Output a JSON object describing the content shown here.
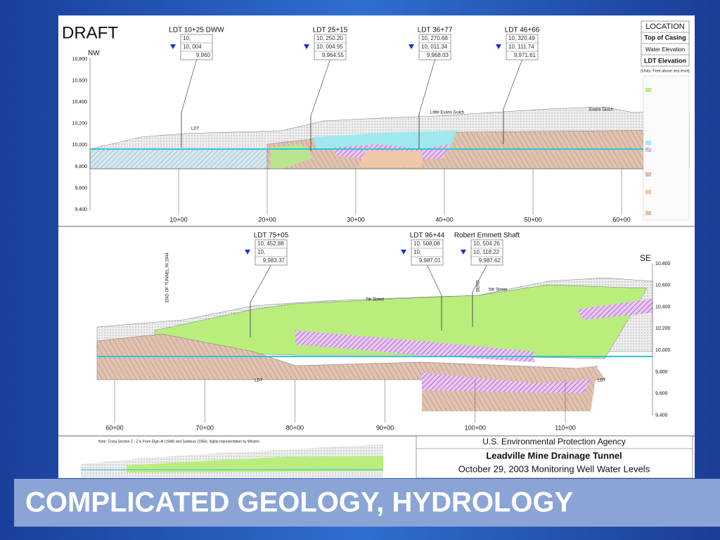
{
  "slide": {
    "title": "COMPLICATED GEOLOGY, HYDROLOGY"
  },
  "upper_section": {
    "label": "DRAFT",
    "start_direction": "NW",
    "elevations": [
      "10,800",
      "10,600",
      "10,400",
      "10,200",
      "10,000",
      "9,800",
      "9,600",
      "9,400"
    ],
    "stations": [
      "10+00",
      "20+00",
      "30+00",
      "40+00",
      "50+00",
      "60+00"
    ],
    "wells": [
      {
        "name": "LDT 10+25  DWW",
        "top_of_casing": "10,",
        "water_elevation": "10, 004",
        "ldt_elevation": "9,960"
      },
      {
        "name": "LDT 25+15",
        "top_of_casing": "10, 250.20",
        "water_elevation": "10, 004.95",
        "ldt_elevation": "9,964.55"
      },
      {
        "name": "LDT 36+77",
        "top_of_casing": "10, 270.68",
        "water_elevation": "10, 011.34",
        "ldt_elevation": "9,968.03"
      },
      {
        "name": "LDT 46+66",
        "top_of_casing": "10, 320.49",
        "water_elevation": "10, 111.74",
        "ldt_elevation": "9,971.61"
      }
    ],
    "annotations": [
      "Little Evans Gulch",
      "Evans Gulch",
      "LDT"
    ]
  },
  "legend": {
    "title": "LOCATION",
    "items": [
      "Top of Casing",
      "Water Elevation",
      "LDT Elevation"
    ],
    "units": "[Units: Feet above sea level]"
  },
  "lower_section": {
    "end_direction": "SE",
    "elevations": [
      "10,800",
      "10,600",
      "10,400",
      "10,200",
      "10,000",
      "9,800",
      "9,600",
      "9,400"
    ],
    "stations": [
      "60+00",
      "70+00",
      "80+00",
      "90+00",
      "100+00",
      "110+00"
    ],
    "wells": [
      {
        "name": "LDT 75+05",
        "top_of_casing": "10, 452.88",
        "water_elevation": "10,",
        "ldt_elevation": "9,983.37"
      },
      {
        "name": "LDT 96+44",
        "top_of_casing": "10, 508.08",
        "water_elevation": "10,",
        "ldt_elevation": "9,987.01"
      },
      {
        "name": "Robert Emmett Shaft",
        "top_of_casing": "10, 504.26",
        "water_elevation": "10, 118.22",
        "ldt_elevation": "9,987.62"
      }
    ],
    "annotations": [
      "7th Street",
      "5th Street",
      "LDT",
      "LDT",
      "END OF TUNNEL IN 1944",
      "BEND"
    ]
  },
  "title_block": {
    "note": "Note: Cross Section Z - Z is From Elgin Al (1948) and Salsbury (1956), digital representation by Weston",
    "agency": "U.S. Environmental Protection Agency",
    "project": "Leadville Mine Drainage Tunnel",
    "subtitle": "October 29, 2003 Monitoring Well Water Levels"
  }
}
